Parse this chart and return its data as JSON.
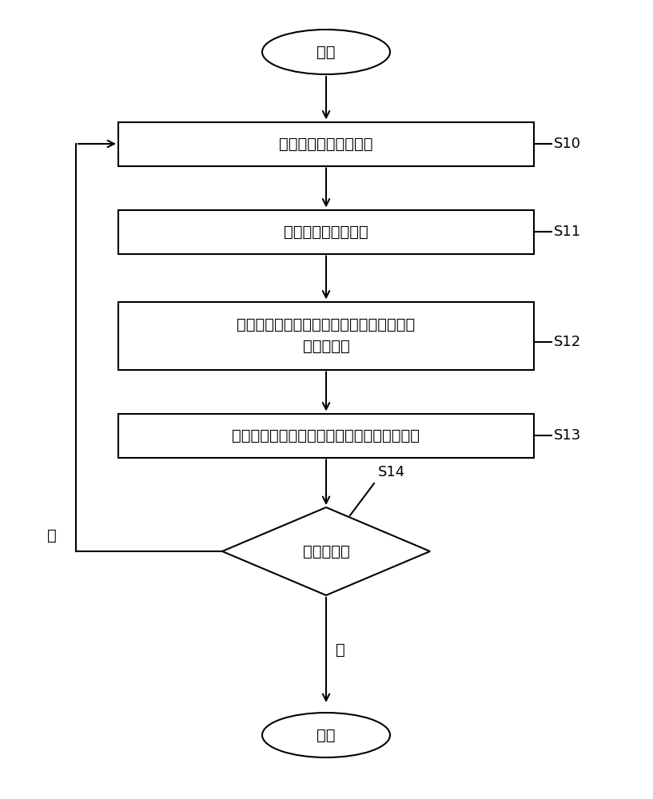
{
  "title": "",
  "background_color": "#ffffff",
  "start_label": "开始",
  "end_label": "结束",
  "boxes": [
    {
      "label": "截取使用者的脸部影像",
      "step": "S10"
    },
    {
      "label": "执行第一平滑化处理",
      "step": "S11"
    },
    {
      "label": "依据脸部影像与平滑影像之间的差异产生表\n皮变化影像",
      "step": "S12"
    },
    {
      "label": "对表皮变化影像的检测区域执行瑕疵检测处理",
      "step": "S13"
    }
  ],
  "diamond_label": "停止检测？",
  "diamond_step": "S14",
  "yes_label": "是",
  "no_label": "否",
  "line_color": "#000000",
  "box_color": "#ffffff",
  "text_color": "#000000",
  "font_size": 14,
  "step_font_size": 13
}
